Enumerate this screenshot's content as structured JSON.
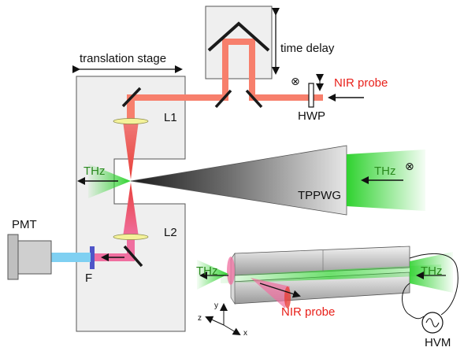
{
  "labels": {
    "time_delay": "time delay",
    "translation_stage": "translation stage",
    "nir_probe_top": "NIR probe",
    "hwp": "HWP",
    "l1": "L1",
    "l2": "L2",
    "thz_left": "THz",
    "thz_right": "THz",
    "tppwg": "TPPWG",
    "pmt": "PMT",
    "filter": "F",
    "thz_inset_left": "THz",
    "thz_inset_right": "THz",
    "nir_probe_bottom": "NIR probe",
    "hvm": "HVM",
    "axis_y": "y",
    "axis_z": "z",
    "axis_x": "x",
    "polarization_symbol_top": "⊗",
    "polarization_symbol_right": "⊗"
  },
  "colors": {
    "nir_beam": "#f77f6c",
    "nir_focus": "#e8403a",
    "nir_pink": "#f06fa0",
    "nir_label": "#e8201a",
    "thz_green": "#2fd22f",
    "thz_label": "#2a8a1e",
    "pmt_beam": "#7fd0f2",
    "filter": "#4f55c8",
    "lens_fill": "#f4f29a",
    "box_fill": "#efefef",
    "pmt_fill": "#bfbfbf"
  }
}
